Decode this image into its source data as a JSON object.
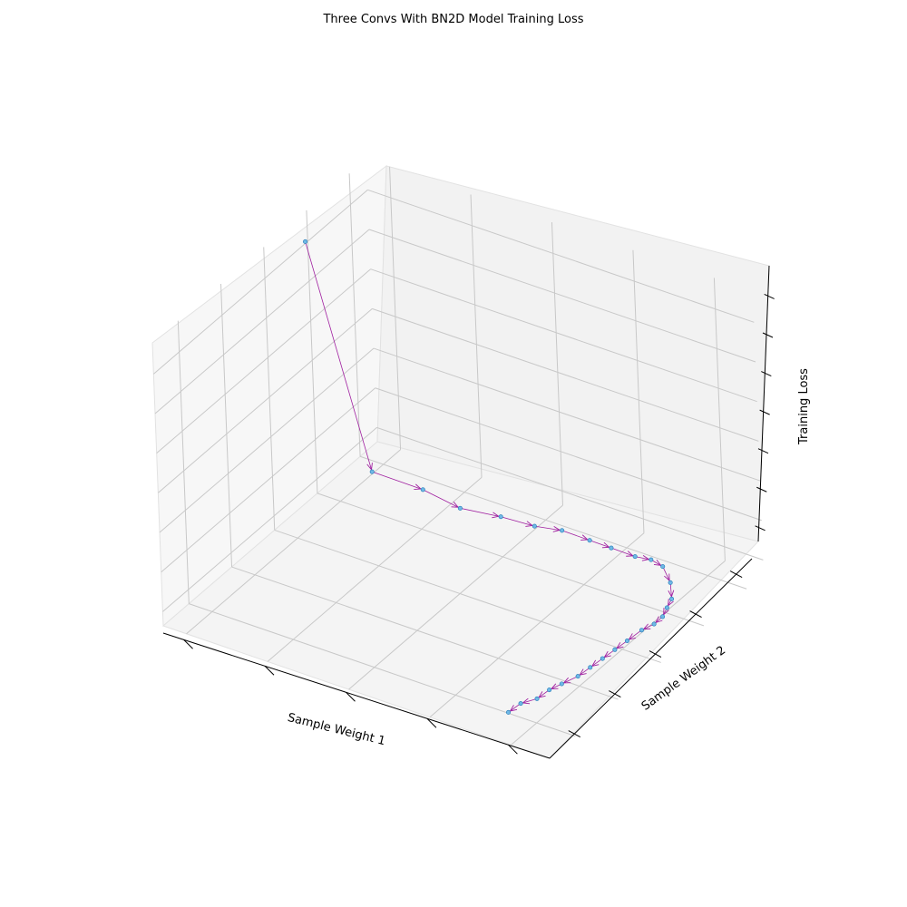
{
  "chart_data": {
    "type": "line",
    "projection": "3d",
    "title": "Three Convs With BN2D Model Training Loss",
    "xlabel": "Sample Weight 1",
    "ylabel": "Sample Weight 2",
    "zlabel": "Training Loss",
    "tick_labels_shown": false,
    "grid": true,
    "colors": {
      "path": "#a020a0",
      "marker": "#6fb8e6",
      "marker_edge": "#1f77b4",
      "pane_back": "#f2f2f2",
      "pane_side": "#f7f7f7",
      "grid": "#c8c8c8"
    },
    "note": "",
    "points": [
      [
        0.04,
        0.64,
        0.96
      ],
      [
        0.25,
        0.54,
        0.31
      ],
      [
        0.37,
        0.56,
        0.29
      ],
      [
        0.46,
        0.57,
        0.26
      ],
      [
        0.56,
        0.58,
        0.27
      ],
      [
        0.63,
        0.61,
        0.25
      ],
      [
        0.69,
        0.63,
        0.25
      ],
      [
        0.75,
        0.65,
        0.23
      ],
      [
        0.8,
        0.66,
        0.22
      ],
      [
        0.85,
        0.68,
        0.2
      ],
      [
        0.88,
        0.7,
        0.19
      ],
      [
        0.91,
        0.7,
        0.18
      ],
      [
        0.94,
        0.68,
        0.15
      ],
      [
        0.965,
        0.64,
        0.13
      ],
      [
        0.975,
        0.6,
        0.13
      ],
      [
        0.98,
        0.57,
        0.12
      ],
      [
        0.98,
        0.53,
        0.12
      ],
      [
        0.97,
        0.49,
        0.12
      ],
      [
        0.96,
        0.44,
        0.11
      ],
      [
        0.95,
        0.4,
        0.1
      ],
      [
        0.94,
        0.36,
        0.09
      ],
      [
        0.93,
        0.32,
        0.08
      ],
      [
        0.92,
        0.28,
        0.07
      ],
      [
        0.9,
        0.24,
        0.06
      ],
      [
        0.89,
        0.2,
        0.06
      ],
      [
        0.88,
        0.16,
        0.05
      ],
      [
        0.86,
        0.12,
        0.05
      ],
      [
        0.85,
        0.08,
        0.04
      ]
    ]
  }
}
